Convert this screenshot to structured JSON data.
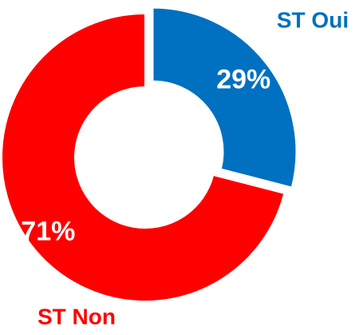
{
  "chart_data": {
    "type": "donut",
    "categories": [
      "ST Oui",
      "ST Non"
    ],
    "values": [
      29,
      71
    ],
    "value_labels": [
      "29%",
      "71%"
    ],
    "colors": [
      "#0070c0",
      "#ff0000"
    ]
  }
}
